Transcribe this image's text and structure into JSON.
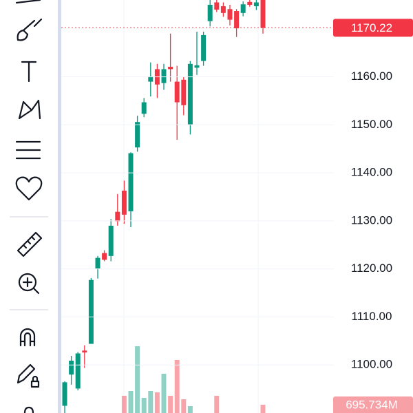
{
  "chart_data": {
    "type": "candlestick",
    "ylim": [
      1090,
      1176
    ],
    "yticks": [
      {
        "value": 1100,
        "label": "1100.00"
      },
      {
        "value": 1110,
        "label": "1110.00"
      },
      {
        "value": 1120,
        "label": "1120.00"
      },
      {
        "value": 1130,
        "label": "1130.00"
      },
      {
        "value": 1140,
        "label": "1140.00"
      },
      {
        "value": 1150,
        "label": "1150.00"
      },
      {
        "value": 1160,
        "label": "1160.00"
      }
    ],
    "grid": true,
    "up_color": "#089981",
    "down_color": "#f23645",
    "open": [
      1091.5,
      1098,
      1095.1,
      1103,
      1104.4,
      1120.1,
      1123.3,
      1122.7,
      1131.9,
      1136.3,
      1132,
      1145.3,
      1152.3,
      1159,
      1161.6,
      1158.7,
      1162.1,
      1159,
      1159.4,
      1150.1,
      1161.9,
      1163.3,
      1171.6,
      1175.5,
      1174.7,
      1174.1,
      1173.7,
      1173.3,
      1175.6,
      1174.7,
      1176
    ],
    "high": [
      1096.6,
      1101.9,
      1102.7,
      1104.1,
      1118.1,
      1122.7,
      1123.9,
      1130.4,
      1135.6,
      1138.4,
      1144.3,
      1151.9,
      1155.6,
      1163,
      1162.7,
      1162.7,
      1169,
      1162.3,
      1160,
      1163.3,
      1169.4,
      1169.4,
      1176,
      1176,
      1175.5,
      1175,
      1174.1,
      1175.7,
      1176,
      1176,
      1176
    ],
    "low": [
      1090,
      1095.9,
      1094.7,
      1099.4,
      1104.4,
      1118,
      1121.6,
      1121.6,
      1129,
      1129.4,
      1128.7,
      1144.4,
      1151.6,
      1155.9,
      1155.6,
      1157.3,
      1159,
      1146.9,
      1152,
      1148,
      1160.4,
      1162.3,
      1170.5,
      1173.5,
      1172.5,
      1170.7,
      1168.3,
      1172.6,
      1174.6,
      1173.9,
      1169
    ],
    "close": [
      1096.4,
      1100.9,
      1102.4,
      1102.6,
      1117.7,
      1122.3,
      1121.9,
      1129,
      1129.9,
      1131.3,
      1144.1,
      1150.6,
      1154.7,
      1160.1,
      1158.4,
      1161.6,
      1161.6,
      1154.7,
      1154.1,
      1162.7,
      1162.4,
      1168.7,
      1175,
      1174,
      1173.3,
      1171.9,
      1170.1,
      1175.1,
      1175,
      1175.5,
      1170.22
    ],
    "volume": [
      null,
      null,
      null,
      null,
      null,
      null,
      null,
      null,
      null,
      25,
      32,
      97,
      22,
      32,
      30,
      57,
      25,
      77,
      20,
      10,
      null,
      null,
      null,
      25,
      null,
      null,
      null,
      null,
      null,
      null,
      12
    ],
    "last_price": {
      "value": 1170.22,
      "label": "1170.22"
    },
    "volume_label": "695.734M"
  }
}
